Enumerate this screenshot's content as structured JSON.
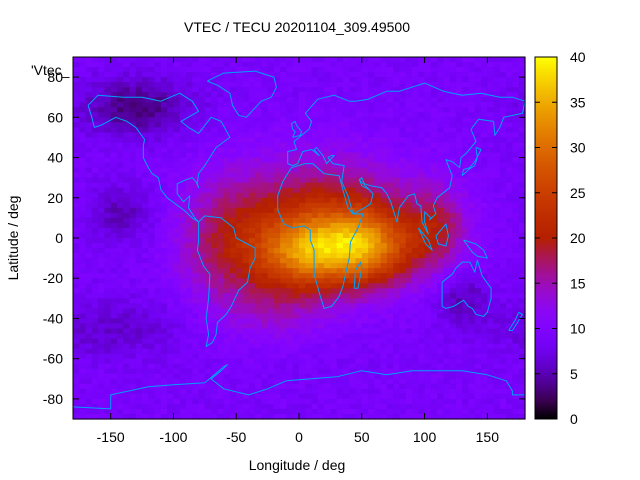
{
  "chart_data": {
    "type": "heatmap",
    "title": "VTEC / TECU 20201104_309.49500",
    "xlabel": "Longitude / deg",
    "ylabel": "Latitude / deg",
    "series_key": "'Vtec_",
    "xlim": [
      -180,
      180
    ],
    "ylim": [
      -90,
      90
    ],
    "x_ticks": [
      -150,
      -100,
      -50,
      0,
      50,
      100,
      150
    ],
    "y_ticks": [
      -80,
      -60,
      -40,
      -20,
      0,
      20,
      40,
      60,
      80
    ],
    "colorbar": {
      "range": [
        0,
        40
      ],
      "ticks": [
        0,
        5,
        10,
        15,
        20,
        25,
        30,
        35,
        40
      ],
      "palette": "black-purple-red-orange-yellow"
    },
    "grid_resolution": {
      "lon_step_deg": 5,
      "lat_step_deg": 2.5
    },
    "regions": {
      "peak": {
        "lon": 50,
        "lat": -5,
        "value": 38
      },
      "secondary_peak": {
        "lon": 0,
        "lat": -8,
        "value": 34
      },
      "minimum_north_pacific": {
        "lon": -130,
        "lat": 65,
        "value": 3
      },
      "background": 9
    },
    "coastline_color": "#00a0ff"
  }
}
